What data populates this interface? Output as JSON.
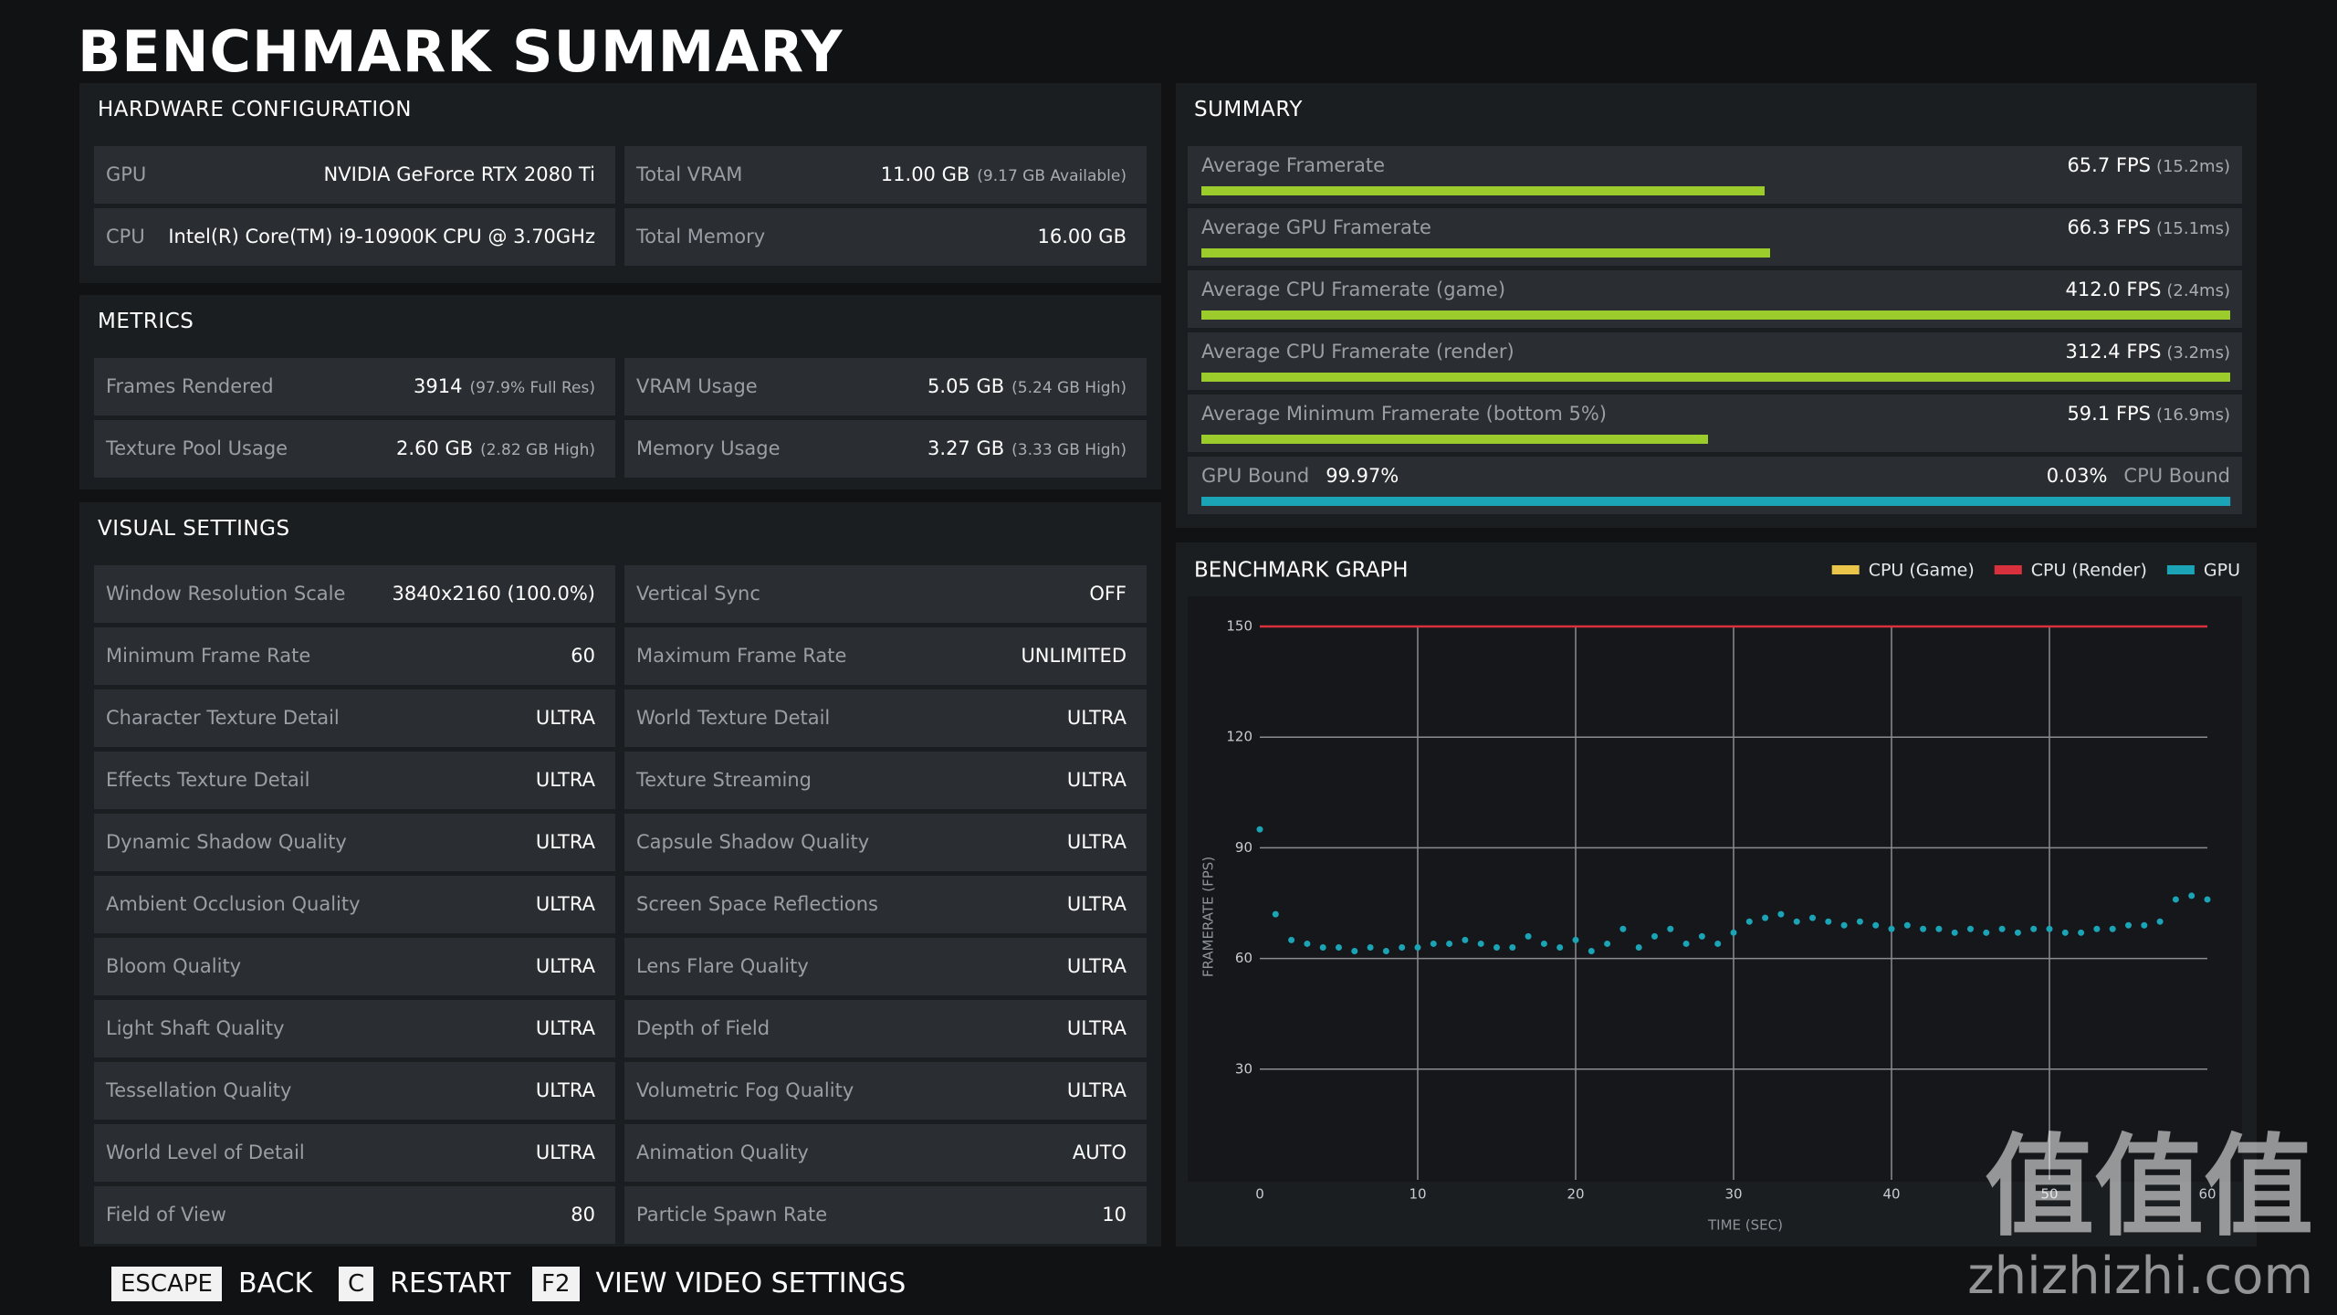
{
  "title": "BENCHMARK SUMMARY",
  "hardware": {
    "title": "HARDWARE CONFIGURATION",
    "rows": [
      [
        {
          "label": "GPU",
          "value": "NVIDIA GeForce RTX 2080 Ti"
        },
        {
          "label": "Total VRAM",
          "value": "11.00 GB",
          "note": "(9.17 GB Available)"
        }
      ],
      [
        {
          "label": "CPU",
          "value": "Intel(R) Core(TM) i9-10900K CPU @ 3.70GHz"
        },
        {
          "label": "Total Memory",
          "value": "16.00 GB"
        }
      ]
    ]
  },
  "metrics": {
    "title": "METRICS",
    "rows": [
      [
        {
          "label": "Frames Rendered",
          "value": "3914",
          "note": "(97.9% Full Res)"
        },
        {
          "label": "VRAM Usage",
          "value": "5.05 GB",
          "note": "(5.24 GB High)"
        }
      ],
      [
        {
          "label": "Texture Pool Usage",
          "value": "2.60 GB",
          "note": "(2.82 GB High)"
        },
        {
          "label": "Memory Usage",
          "value": "3.27 GB",
          "note": "(3.33 GB High)"
        }
      ]
    ]
  },
  "visual": {
    "title": "VISUAL SETTINGS",
    "rows": [
      [
        {
          "label": "Window Resolution Scale",
          "value": "3840x2160 (100.0%)"
        },
        {
          "label": "Vertical Sync",
          "value": "OFF"
        }
      ],
      [
        {
          "label": "Minimum Frame Rate",
          "value": "60"
        },
        {
          "label": "Maximum Frame Rate",
          "value": "UNLIMITED"
        }
      ],
      [
        {
          "label": "Character Texture Detail",
          "value": "ULTRA"
        },
        {
          "label": "World Texture Detail",
          "value": "ULTRA"
        }
      ],
      [
        {
          "label": "Effects Texture Detail",
          "value": "ULTRA"
        },
        {
          "label": "Texture Streaming",
          "value": "ULTRA"
        }
      ],
      [
        {
          "label": "Dynamic Shadow Quality",
          "value": "ULTRA"
        },
        {
          "label": "Capsule Shadow Quality",
          "value": "ULTRA"
        }
      ],
      [
        {
          "label": "Ambient Occlusion Quality",
          "value": "ULTRA"
        },
        {
          "label": "Screen Space Reflections",
          "value": "ULTRA"
        }
      ],
      [
        {
          "label": "Bloom Quality",
          "value": "ULTRA"
        },
        {
          "label": "Lens Flare Quality",
          "value": "ULTRA"
        }
      ],
      [
        {
          "label": "Light Shaft Quality",
          "value": "ULTRA"
        },
        {
          "label": "Depth of Field",
          "value": "ULTRA"
        }
      ],
      [
        {
          "label": "Tessellation Quality",
          "value": "ULTRA"
        },
        {
          "label": "Volumetric Fog Quality",
          "value": "ULTRA"
        }
      ],
      [
        {
          "label": "World Level of Detail",
          "value": "ULTRA"
        },
        {
          "label": "Animation Quality",
          "value": "AUTO"
        }
      ],
      [
        {
          "label": "Field of View",
          "value": "80"
        },
        {
          "label": "Particle Spawn Rate",
          "value": "10"
        }
      ]
    ]
  },
  "summary": {
    "title": "SUMMARY",
    "color": "#9ccc2c",
    "rows": [
      {
        "label": "Average Framerate",
        "fps": 65.7,
        "fps_label": "65.7 FPS",
        "ms_label": "(15.2ms)"
      },
      {
        "label": "Average GPU Framerate",
        "fps": 66.3,
        "fps_label": "66.3 FPS",
        "ms_label": "(15.1ms)"
      },
      {
        "label": "Average CPU Framerate (game)",
        "fps": 412.0,
        "fps_label": "412.0 FPS",
        "ms_label": "(2.4ms)"
      },
      {
        "label": "Average CPU Framerate (render)",
        "fps": 312.4,
        "fps_label": "312.4 FPS",
        "ms_label": "(3.2ms)"
      },
      {
        "label": "Average Minimum Framerate (bottom 5%)",
        "fps": 59.1,
        "fps_label": "59.1 FPS",
        "ms_label": "(16.9ms)"
      }
    ],
    "bound": {
      "gpu_label": "GPU Bound",
      "gpu_value": 99.97,
      "gpu_value_label": "99.97%",
      "cpu_label": "CPU Bound",
      "cpu_value": 0.03,
      "cpu_value_label": "0.03%",
      "color": "#1ba3b6"
    }
  },
  "chart_data": {
    "type": "scatter",
    "title": "BENCHMARK GRAPH",
    "xlabel": "TIME (SEC)",
    "ylabel": "FRAMERATE (FPS)",
    "xlim": [
      0,
      60
    ],
    "ylim": [
      0,
      150
    ],
    "xticks": [
      0,
      10,
      20,
      30,
      40,
      50,
      60
    ],
    "yticks": [
      30,
      60,
      90,
      120,
      150
    ],
    "grid": true,
    "legend": "top-right",
    "series": [
      {
        "name": "CPU (Game)",
        "color": "#e9c64a",
        "x": [],
        "values": []
      },
      {
        "name": "CPU (Render)",
        "color": "#d9303d",
        "style": "line",
        "x": [
          0,
          60
        ],
        "values": [
          150,
          150
        ]
      },
      {
        "name": "GPU",
        "color": "#1ba3b6",
        "x": [
          0,
          1,
          2,
          3,
          4,
          5,
          6,
          7,
          8,
          9,
          10,
          11,
          12,
          13,
          14,
          15,
          16,
          17,
          18,
          19,
          20,
          21,
          22,
          23,
          24,
          25,
          26,
          27,
          28,
          29,
          30,
          31,
          32,
          33,
          34,
          35,
          36,
          37,
          38,
          39,
          40,
          41,
          42,
          43,
          44,
          45,
          46,
          47,
          48,
          49,
          50,
          51,
          52,
          53,
          54,
          55,
          56,
          57,
          58,
          59,
          60
        ],
        "values": [
          95,
          72,
          65,
          64,
          63,
          63,
          62,
          63,
          62,
          63,
          63,
          64,
          64,
          65,
          64,
          63,
          63,
          66,
          64,
          63,
          65,
          62,
          64,
          68,
          63,
          66,
          68,
          64,
          66,
          64,
          67,
          70,
          71,
          72,
          70,
          71,
          70,
          69,
          70,
          69,
          68,
          69,
          68,
          68,
          67,
          68,
          67,
          68,
          67,
          68,
          68,
          67,
          67,
          68,
          68,
          69,
          69,
          70,
          76,
          77,
          76
        ]
      }
    ]
  },
  "controls": [
    {
      "key": "ESCAPE",
      "action": "BACK"
    },
    {
      "key": "C",
      "action": "RESTART"
    },
    {
      "key": "F2",
      "action": "VIEW VIDEO SETTINGS"
    }
  ],
  "watermark": {
    "mark": "值值值",
    "site": "zhizhizhi.com"
  }
}
